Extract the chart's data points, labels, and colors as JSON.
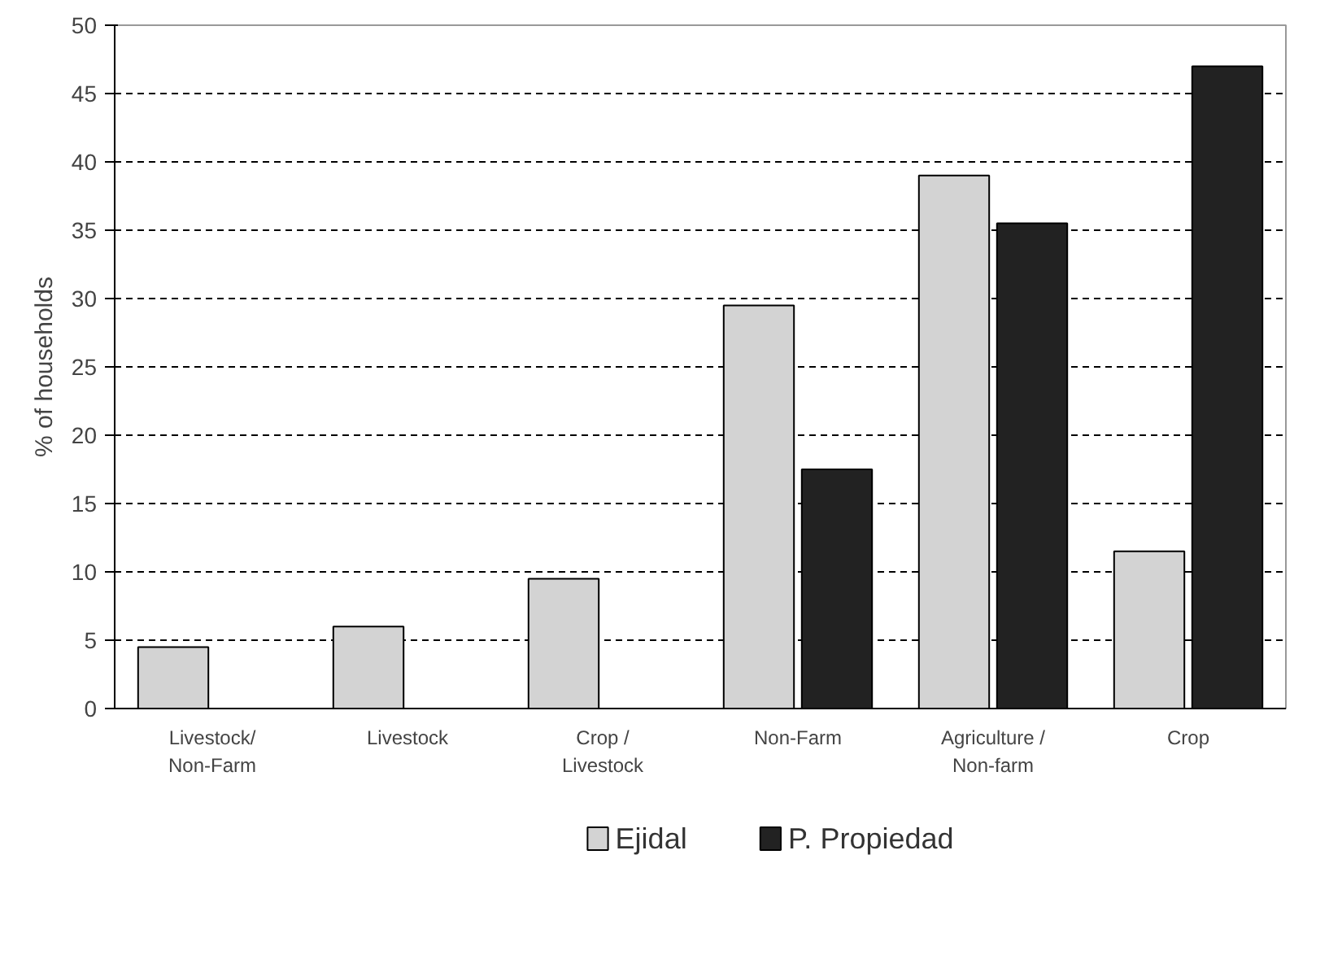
{
  "chart_data": {
    "type": "bar",
    "ylabel": "% of households",
    "categories": [
      "Livestock/\nNon-Farm",
      "Livestock",
      "Crop /\nLivestock",
      "Non-Farm",
      "Agriculture /\nNon-farm",
      "Crop"
    ],
    "series": [
      {
        "name": "Ejidal",
        "color": "#d3d3d3",
        "values": [
          4.5,
          6,
          9.5,
          29.5,
          39,
          11.5
        ]
      },
      {
        "name": "P. Propiedad",
        "color": "#222222",
        "values": [
          null,
          null,
          null,
          17.5,
          35.5,
          47
        ]
      }
    ],
    "ylim": [
      0,
      50
    ],
    "yticks": [
      0,
      5,
      10,
      15,
      20,
      25,
      30,
      35,
      40,
      45,
      50
    ],
    "grid": "y",
    "legend": "bottom"
  }
}
